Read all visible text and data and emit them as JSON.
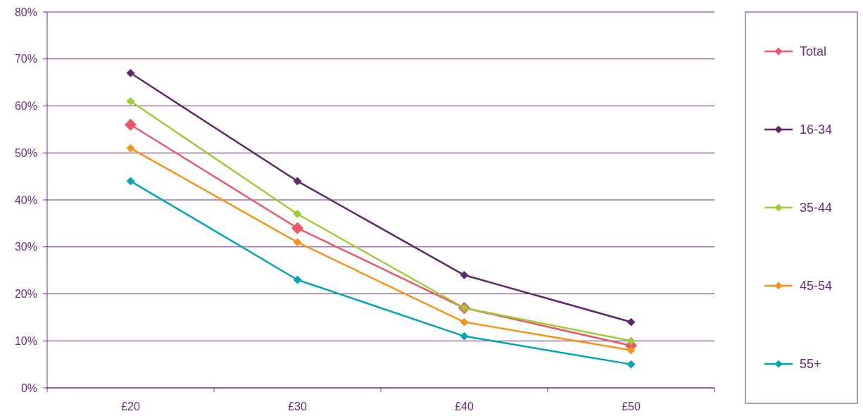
{
  "chart_data": {
    "type": "line",
    "categories": [
      "£20",
      "£30",
      "£40",
      "£50"
    ],
    "series": [
      {
        "name": "Total",
        "color": "#e8596b",
        "values": [
          56,
          34,
          17,
          9
        ]
      },
      {
        "name": "16-34",
        "color": "#5e2a69",
        "values": [
          67,
          44,
          24,
          14
        ]
      },
      {
        "name": "35-44",
        "color": "#9fcb3a",
        "values": [
          61,
          37,
          17,
          10
        ]
      },
      {
        "name": "45-54",
        "color": "#f7941d",
        "values": [
          51,
          31,
          14,
          8
        ]
      },
      {
        "name": "55+",
        "color": "#00a6b6",
        "values": [
          44,
          23,
          11,
          5
        ]
      }
    ],
    "ylim": [
      0,
      80
    ],
    "yticks": [
      {
        "value": 0,
        "label": "0%"
      },
      {
        "value": 10,
        "label": "10%"
      },
      {
        "value": 20,
        "label": "20%"
      },
      {
        "value": 30,
        "label": "30%"
      },
      {
        "value": 40,
        "label": "40%"
      },
      {
        "value": 50,
        "label": "50%"
      },
      {
        "value": 60,
        "label": "60%"
      },
      {
        "value": 70,
        "label": "70%"
      },
      {
        "value": 80,
        "label": "80%"
      }
    ],
    "grid": "y",
    "legend": "right",
    "marker": "diamond",
    "line_style": "solid"
  }
}
